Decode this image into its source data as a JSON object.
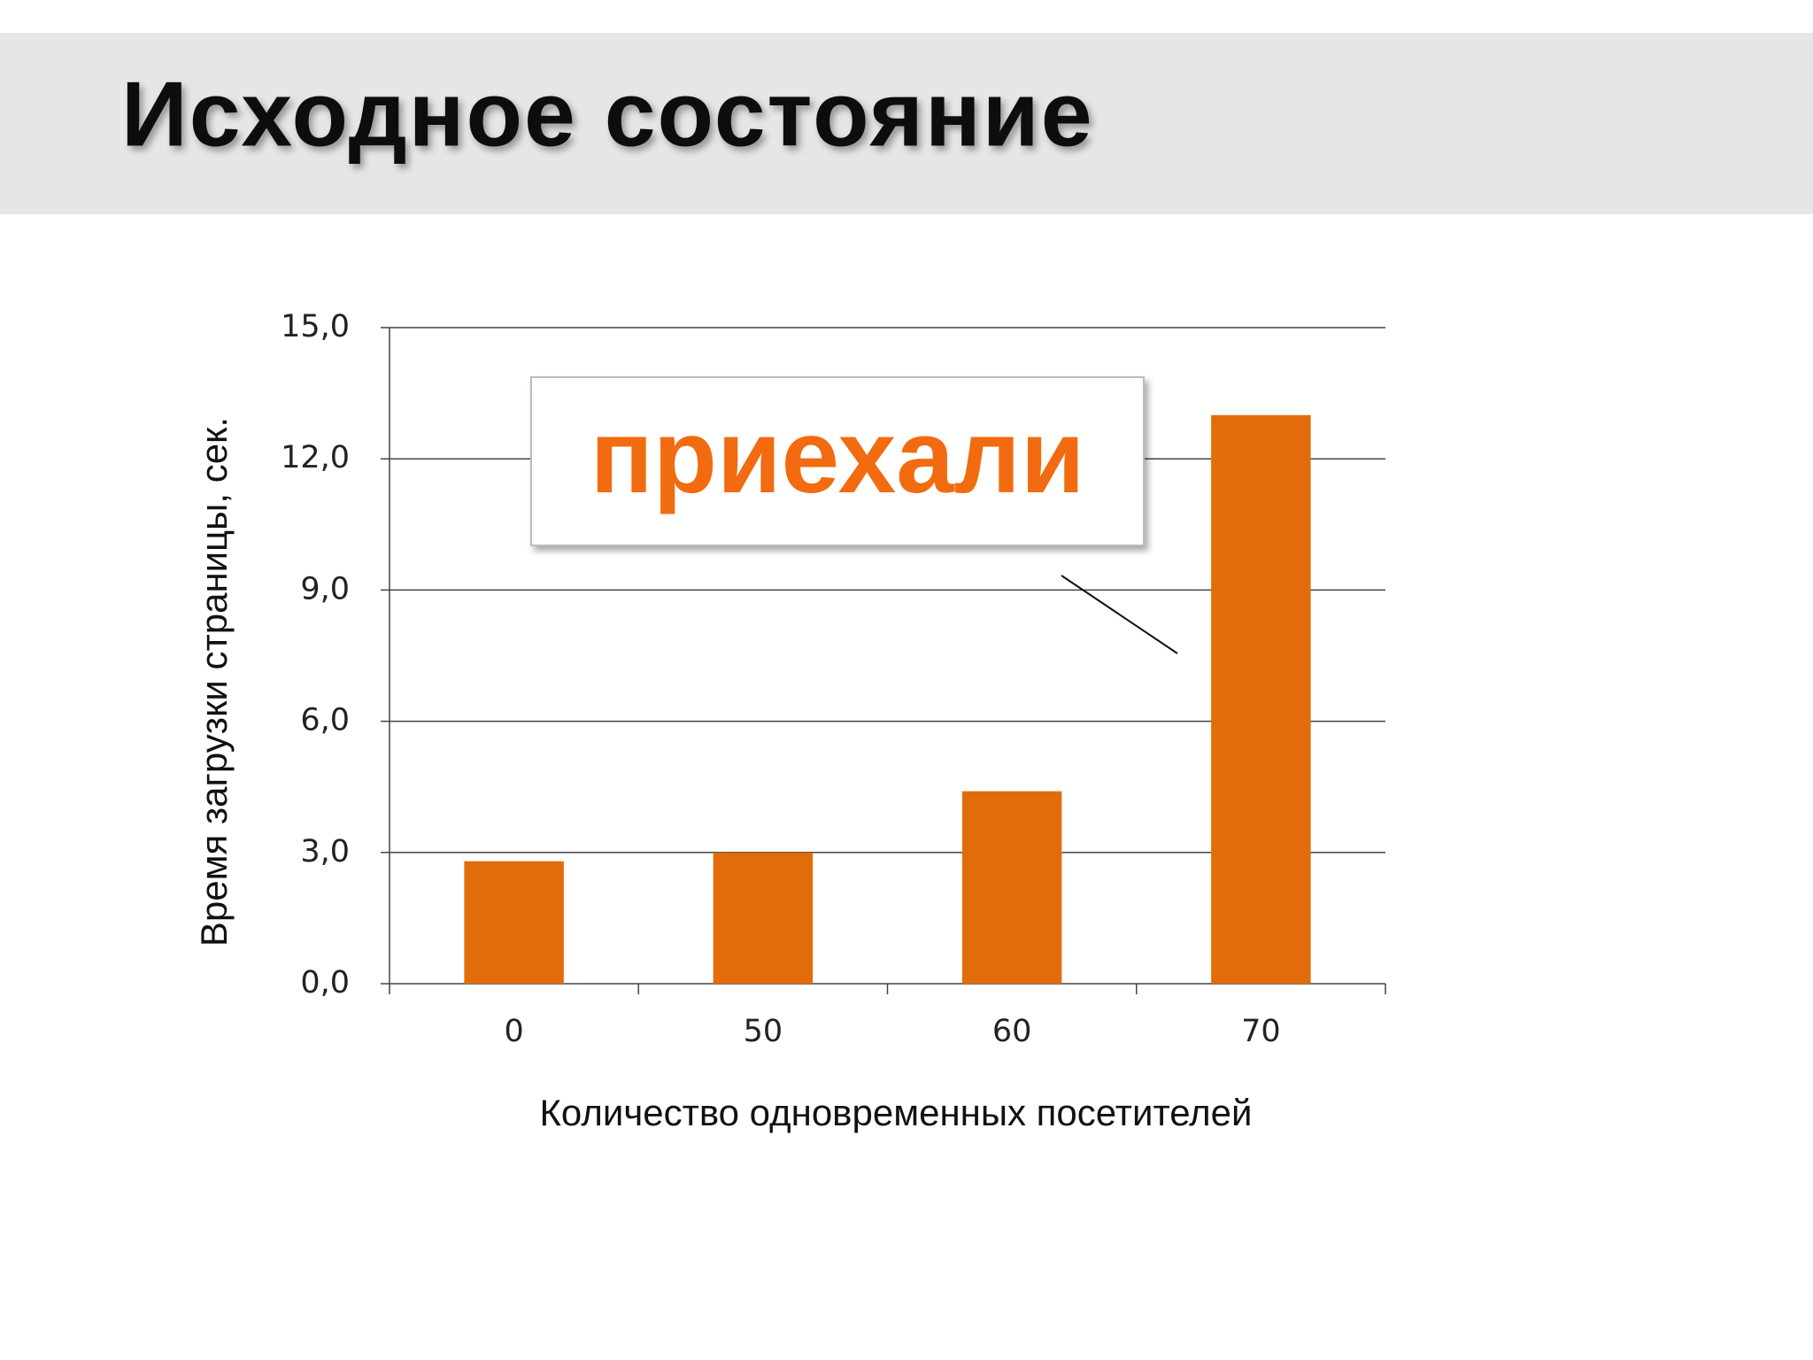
{
  "chart_data": {
    "type": "bar",
    "title": "Исходное состояние",
    "annotation": "приехали",
    "x_label": "Количество одновременных посетителей",
    "y_label": "Время загрузки страницы, сек.",
    "categories": [
      "0",
      "50",
      "60",
      "70"
    ],
    "values": [
      2.8,
      3.0,
      4.4,
      13.0
    ],
    "color": "#e36c0a",
    "ylim": [
      0,
      15
    ],
    "yticks": [
      {
        "value": 0,
        "label": "0,0"
      },
      {
        "value": 3,
        "label": "3,0"
      },
      {
        "value": 6,
        "label": "6,0"
      },
      {
        "value": 9,
        "label": "9,0"
      },
      {
        "value": 12,
        "label": "12,0"
      },
      {
        "value": 15,
        "label": "15,0"
      }
    ],
    "grid": true
  }
}
